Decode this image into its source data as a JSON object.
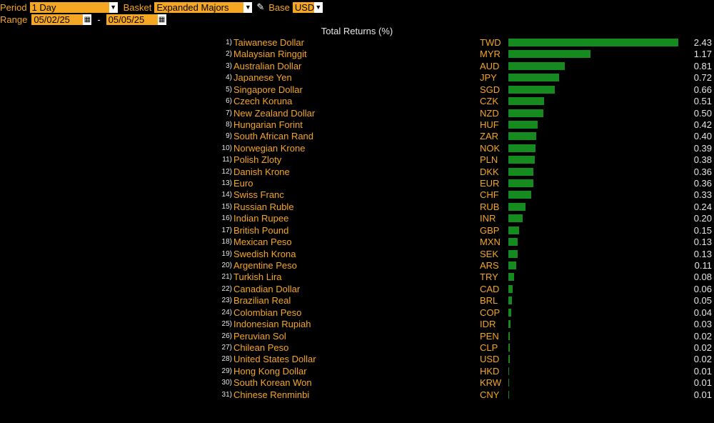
{
  "toolbar": {
    "period_label": "Period",
    "period_value": "1 Day",
    "basket_label": "Basket",
    "basket_value": "Expanded Majors",
    "base_label": "Base",
    "base_value": "USD",
    "range_label": "Range",
    "range_start": "05/02/25",
    "range_sep": "-",
    "range_end": "05/05/25"
  },
  "chart_data": {
    "type": "bar",
    "title": "Total Returns (%)",
    "bar_color": "#158a1f",
    "xlim": [
      0,
      2.43
    ],
    "rows": [
      {
        "rank": "1)",
        "name": "Taiwanese Dollar",
        "code": "TWD",
        "value": 2.43
      },
      {
        "rank": "2)",
        "name": "Malaysian Ringgit",
        "code": "MYR",
        "value": 1.17
      },
      {
        "rank": "3)",
        "name": "Australian Dollar",
        "code": "AUD",
        "value": 0.81
      },
      {
        "rank": "4)",
        "name": "Japanese Yen",
        "code": "JPY",
        "value": 0.72
      },
      {
        "rank": "5)",
        "name": "Singapore Dollar",
        "code": "SGD",
        "value": 0.66
      },
      {
        "rank": "6)",
        "name": "Czech Koruna",
        "code": "CZK",
        "value": 0.51
      },
      {
        "rank": "7)",
        "name": "New Zealand Dollar",
        "code": "NZD",
        "value": 0.5
      },
      {
        "rank": "8)",
        "name": "Hungarian Forint",
        "code": "HUF",
        "value": 0.42
      },
      {
        "rank": "9)",
        "name": "South African Rand",
        "code": "ZAR",
        "value": 0.4
      },
      {
        "rank": "10)",
        "name": "Norwegian Krone",
        "code": "NOK",
        "value": 0.39
      },
      {
        "rank": "11)",
        "name": "Polish Zloty",
        "code": "PLN",
        "value": 0.38
      },
      {
        "rank": "12)",
        "name": "Danish Krone",
        "code": "DKK",
        "value": 0.36
      },
      {
        "rank": "13)",
        "name": "Euro",
        "code": "EUR",
        "value": 0.36
      },
      {
        "rank": "14)",
        "name": "Swiss Franc",
        "code": "CHF",
        "value": 0.33
      },
      {
        "rank": "15)",
        "name": "Russian Ruble",
        "code": "RUB",
        "value": 0.24
      },
      {
        "rank": "16)",
        "name": "Indian Rupee",
        "code": "INR",
        "value": 0.2
      },
      {
        "rank": "17)",
        "name": "British Pound",
        "code": "GBP",
        "value": 0.15
      },
      {
        "rank": "18)",
        "name": "Mexican Peso",
        "code": "MXN",
        "value": 0.13
      },
      {
        "rank": "19)",
        "name": "Swedish Krona",
        "code": "SEK",
        "value": 0.13
      },
      {
        "rank": "20)",
        "name": "Argentine Peso",
        "code": "ARS",
        "value": 0.11
      },
      {
        "rank": "21)",
        "name": "Turkish Lira",
        "code": "TRY",
        "value": 0.08
      },
      {
        "rank": "22)",
        "name": "Canadian Dollar",
        "code": "CAD",
        "value": 0.06
      },
      {
        "rank": "23)",
        "name": "Brazilian Real",
        "code": "BRL",
        "value": 0.05
      },
      {
        "rank": "24)",
        "name": "Colombian Peso",
        "code": "COP",
        "value": 0.04
      },
      {
        "rank": "25)",
        "name": "Indonesian Rupiah",
        "code": "IDR",
        "value": 0.03
      },
      {
        "rank": "26)",
        "name": "Peruvian Sol",
        "code": "PEN",
        "value": 0.02
      },
      {
        "rank": "27)",
        "name": "Chilean Peso",
        "code": "CLP",
        "value": 0.02
      },
      {
        "rank": "28)",
        "name": "United States Dollar",
        "code": "USD",
        "value": 0.02
      },
      {
        "rank": "29)",
        "name": "Hong Kong Dollar",
        "code": "HKD",
        "value": 0.01
      },
      {
        "rank": "30)",
        "name": "South Korean Won",
        "code": "KRW",
        "value": 0.01
      },
      {
        "rank": "31)",
        "name": "Chinese Renminbi",
        "code": "CNY",
        "value": 0.01
      }
    ]
  }
}
